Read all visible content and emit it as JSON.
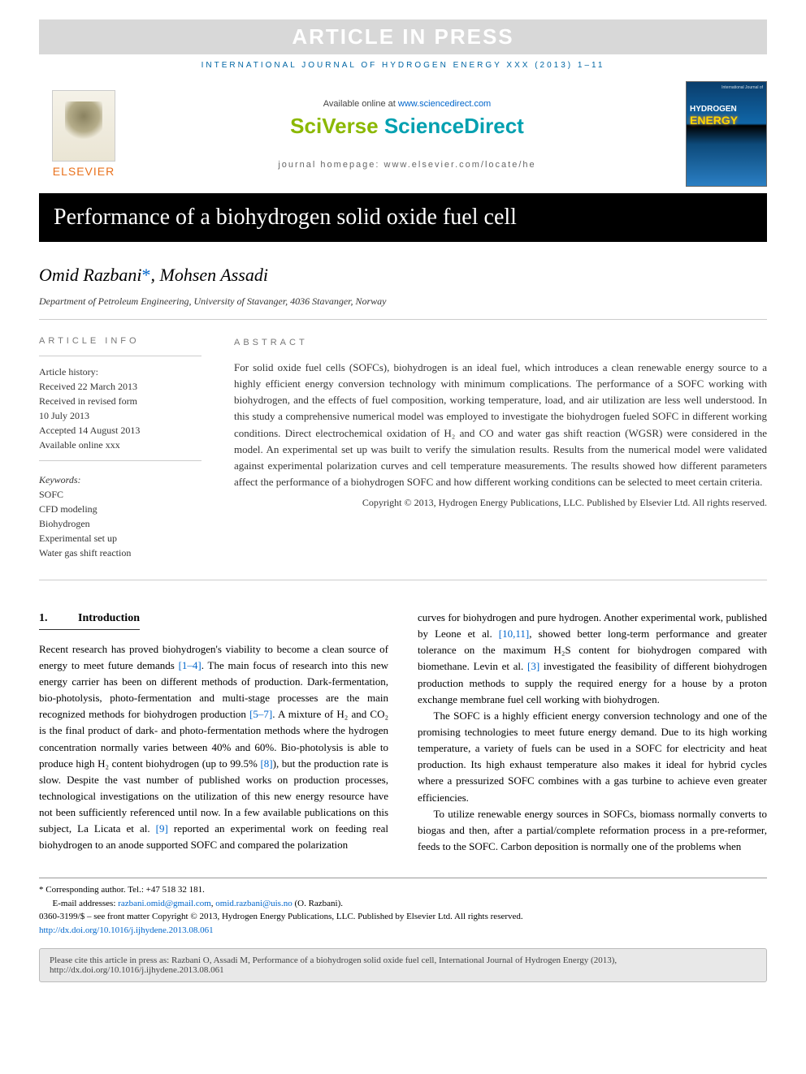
{
  "banner": {
    "text": "ARTICLE IN PRESS",
    "bg": "#d8d8d8",
    "fg": "#ffffff"
  },
  "journal_header_line": "INTERNATIONAL JOURNAL OF HYDROGEN ENERGY XXX (2013) 1–11",
  "header": {
    "publisher_name": "ELSEVIER",
    "available_text": "Available online at ",
    "available_link": "www.sciencedirect.com",
    "sd_logo_left": "SciVerse ",
    "sd_logo_right": "ScienceDirect",
    "homepage_text": "journal homepage: www.elsevier.com/locate/he",
    "cover": {
      "top": "International Journal of",
      "mid": "HYDROGEN",
      "energy": "ENERGY"
    }
  },
  "title": "Performance of a biohydrogen solid oxide fuel cell",
  "authors": {
    "a1": "Omid Razbani",
    "a2": "Mohsen Assadi",
    "corr_marker": "*"
  },
  "affiliation": "Department of Petroleum Engineering, University of Stavanger, 4036 Stavanger, Norway",
  "article_info": {
    "label": "ARTICLE INFO",
    "history_label": "Article history:",
    "received": "Received 22 March 2013",
    "revised1": "Received in revised form",
    "revised2": "10 July 2013",
    "accepted": "Accepted 14 August 2013",
    "online": "Available online xxx",
    "keywords_label": "Keywords:",
    "kw1": "SOFC",
    "kw2": "CFD modeling",
    "kw3": "Biohydrogen",
    "kw4": "Experimental set up",
    "kw5": "Water gas shift reaction"
  },
  "abstract": {
    "label": "ABSTRACT",
    "text": "For solid oxide fuel cells (SOFCs), biohydrogen is an ideal fuel, which introduces a clean renewable energy source to a highly efficient energy conversion technology with minimum complications. The performance of a SOFC working with biohydrogen, and the effects of fuel composition, working temperature, load, and air utilization are less well understood. In this study a comprehensive numerical model was employed to investigate the biohydrogen fueled SOFC in different working conditions. Direct electrochemical oxidation of H₂ and CO and water gas shift reaction (WGSR) were considered in the model. An experimental set up was built to verify the simulation results. Results from the numerical model were validated against experimental polarization curves and cell temperature measurements. The results showed how different parameters affect the performance of a biohydrogen SOFC and how different working conditions can be selected to meet certain criteria.",
    "copyright": "Copyright © 2013, Hydrogen Energy Publications, LLC. Published by Elsevier Ltd. All rights reserved."
  },
  "section1": {
    "num": "1.",
    "title": "Introduction",
    "col1": {
      "p1a": "Recent research has proved biohydrogen's viability to become a clean source of energy to meet future demands ",
      "r1": "[1–4]",
      "p1b": ". The main focus of research into this new energy carrier has been on different methods of production. Dark-fermentation, bio-photolysis, photo-fermentation and multi-stage processes are the main recognized methods for biohydrogen production ",
      "r2": "[5–7]",
      "p1c": ". A mixture of H₂ and CO₂ is the final product of dark- and photo-fermentation methods where the hydrogen concentration normally varies between 40% and 60%. Bio-photolysis is able to produce high H₂ content biohydrogen (up to 99.5% ",
      "r3": "[8]",
      "p1d": "), but the production rate is slow. Despite the vast number of published works on production processes, technological investigations on the utilization of this new energy resource have not been sufficiently referenced until now. In a few available publications on this subject, La Licata et al. ",
      "r4": "[9]",
      "p1e": " reported an experimental work on feeding real biohydrogen to an anode supported SOFC and compared the polarization"
    },
    "col2": {
      "p1a": "curves for biohydrogen and pure hydrogen. Another experimental work, published by Leone et al. ",
      "r1": "[10,11]",
      "p1b": ", showed better long-term performance and greater tolerance on the maximum H₂S content for biohydrogen compared with biomethane. Levin et al. ",
      "r2": "[3]",
      "p1c": " investigated the feasibility of different biohydrogen production methods to supply the required energy for a house by a proton exchange membrane fuel cell working with biohydrogen.",
      "p2": "The SOFC is a highly efficient energy conversion technology and one of the promising technologies to meet future energy demand. Due to its high working temperature, a variety of fuels can be used in a SOFC for electricity and heat production. Its high exhaust temperature also makes it ideal for hybrid cycles where a pressurized SOFC combines with a gas turbine to achieve even greater efficiencies.",
      "p3": "To utilize renewable energy sources in SOFCs, biomass normally converts to biogas and then, after a partial/complete reformation process in a pre-reformer, feeds to the SOFC. Carbon deposition is normally one of the problems when"
    }
  },
  "footer": {
    "corr_label": "* Corresponding author.",
    "tel": " Tel.: +47 518 32 181.",
    "email_label": "E-mail addresses: ",
    "email1": "razbani.omid@gmail.com",
    "email_sep": ", ",
    "email2": "omid.razbani@uis.no",
    "email_name": " (O. Razbani).",
    "issn_line": "0360-3199/$ – see front matter Copyright © 2013, Hydrogen Energy Publications, LLC. Published by Elsevier Ltd. All rights reserved.",
    "doi": "http://dx.doi.org/10.1016/j.ijhydene.2013.08.061"
  },
  "cite_box": "Please cite this article in press as: Razbani O, Assadi M, Performance of a biohydrogen solid oxide fuel cell, International Journal of Hydrogen Energy (2013), http://dx.doi.org/10.1016/j.ijhydene.2013.08.061",
  "colors": {
    "link": "#0066cc",
    "journal_blue": "#0066a4",
    "elsevier_orange": "#e9711c",
    "sd_green": "#8bb800",
    "sd_teal": "#00a0b0",
    "title_bg": "#000000",
    "cite_bg": "#e8e8e8"
  }
}
